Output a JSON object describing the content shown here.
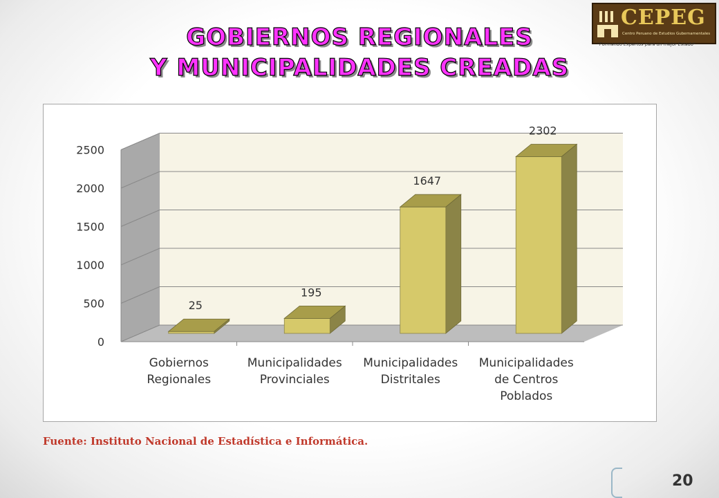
{
  "slide": {
    "title_line1": "GOBIERNOS REGIONALES",
    "title_line2": "Y MUNICIPALIDADES CREADAS",
    "source": "Fuente: Instituto Nacional de Estadística e Informática.",
    "page_number": "20"
  },
  "logo": {
    "name": "CEPEG",
    "subtitle": "Centro Peruano de Estudios Gubernamentales",
    "motto": "\"Formando Expertos para un mejor Estado\""
  },
  "chart_data": {
    "type": "bar",
    "categories": [
      "Gobiernos Regionales",
      "Municipalidades Provinciales",
      "Municipalidades Distritales",
      "Municipalidades de Centros Poblados"
    ],
    "category_lines": [
      [
        "Gobiernos",
        "Regionales"
      ],
      [
        "Municipalidades",
        "Provinciales"
      ],
      [
        "Municipalidades",
        "Distritales"
      ],
      [
        "Municipalidades",
        "de Centros",
        "Poblados"
      ]
    ],
    "values": [
      25,
      195,
      1647,
      2302
    ],
    "data_labels": [
      "25",
      "195",
      "1647",
      "2302"
    ],
    "yticks": [
      0,
      500,
      1000,
      1500,
      2000,
      2500
    ],
    "ylim": [
      0,
      2500
    ],
    "title": "",
    "xlabel": "",
    "ylabel": "",
    "grid": true,
    "legend": "none",
    "style": "3d",
    "colors": {
      "bar_front": "#d6c96a",
      "bar_side": "#8b8447",
      "bar_top": "#a89d4a",
      "wall": "#f7f4e6",
      "side_wall": "#a9a9a9",
      "floor": "#bdbdbd"
    }
  }
}
